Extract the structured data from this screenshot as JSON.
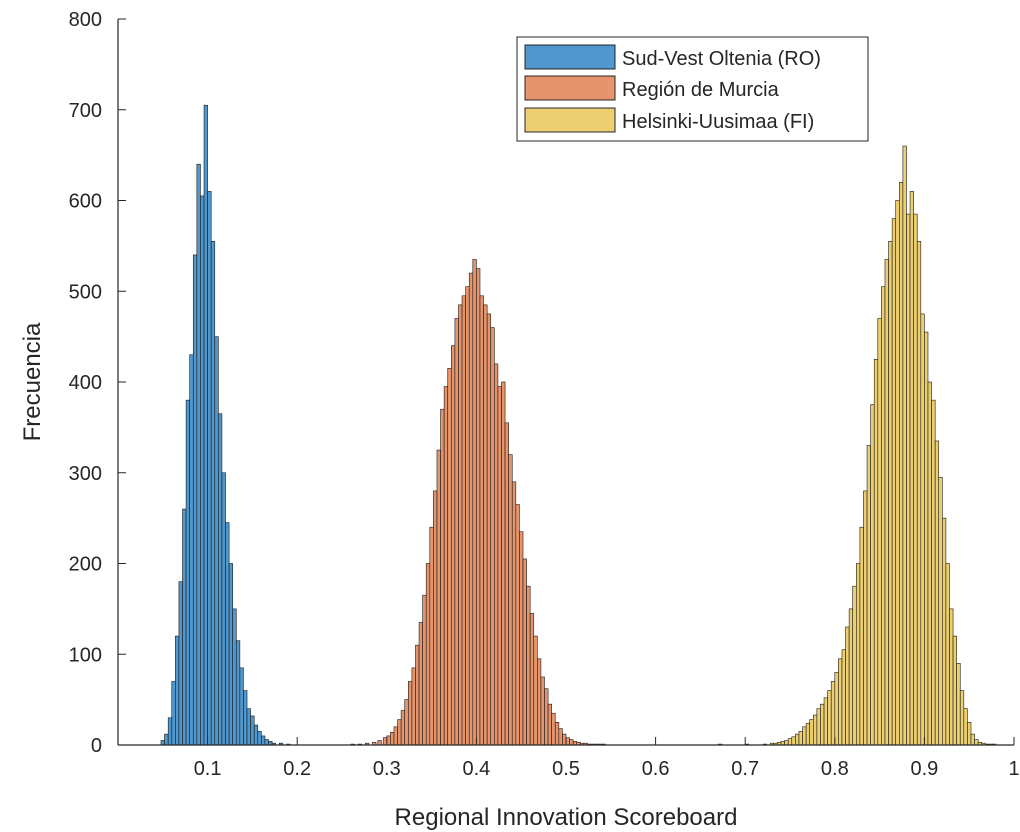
{
  "chart_data": {
    "type": "bar",
    "xlabel": "Regional Innovation Scoreboard",
    "ylabel": "Frecuencia",
    "xlim": [
      0,
      1
    ],
    "ylim": [
      0,
      800
    ],
    "xticks": [
      0.1,
      0.2,
      0.3,
      0.4,
      0.5,
      0.6,
      0.7,
      0.8,
      0.9,
      1
    ],
    "xtick_labels": [
      "0.1",
      "0.2",
      "0.3",
      "0.4",
      "0.5",
      "0.6",
      "0.7",
      "0.8",
      "0.9",
      "1"
    ],
    "yticks": [
      0,
      100,
      200,
      300,
      400,
      500,
      600,
      700,
      800
    ],
    "ytick_labels": [
      "0",
      "100",
      "200",
      "300",
      "400",
      "500",
      "600",
      "700",
      "800"
    ],
    "bin_width": 0.004,
    "grid": false,
    "legend_position": "top-right",
    "series": [
      {
        "name": "Sud-Vest Oltenia (RO)",
        "color": "#4f97cd",
        "x": [
          0.048,
          0.052,
          0.056,
          0.06,
          0.064,
          0.068,
          0.072,
          0.076,
          0.08,
          0.084,
          0.088,
          0.092,
          0.096,
          0.1,
          0.104,
          0.108,
          0.112,
          0.116,
          0.12,
          0.124,
          0.128,
          0.132,
          0.136,
          0.14,
          0.144,
          0.148,
          0.152,
          0.156,
          0.16,
          0.164,
          0.168,
          0.172,
          0.18,
          0.188
        ],
        "values": [
          5,
          12,
          30,
          70,
          120,
          180,
          260,
          380,
          430,
          540,
          640,
          605,
          705,
          610,
          555,
          450,
          365,
          300,
          245,
          200,
          150,
          115,
          85,
          60,
          40,
          32,
          22,
          15,
          10,
          6,
          4,
          2,
          2,
          1
        ]
      },
      {
        "name": "Región de Murcia",
        "color": "#e6946c",
        "x": [
          0.26,
          0.268,
          0.276,
          0.284,
          0.29,
          0.296,
          0.3,
          0.304,
          0.308,
          0.312,
          0.316,
          0.32,
          0.324,
          0.328,
          0.332,
          0.336,
          0.34,
          0.344,
          0.348,
          0.352,
          0.356,
          0.36,
          0.364,
          0.368,
          0.372,
          0.376,
          0.38,
          0.384,
          0.388,
          0.392,
          0.396,
          0.4,
          0.404,
          0.408,
          0.412,
          0.416,
          0.42,
          0.424,
          0.428,
          0.432,
          0.436,
          0.44,
          0.444,
          0.448,
          0.452,
          0.456,
          0.46,
          0.464,
          0.468,
          0.472,
          0.476,
          0.48,
          0.484,
          0.488,
          0.492,
          0.496,
          0.5,
          0.504,
          0.508,
          0.512,
          0.516,
          0.52,
          0.524,
          0.528,
          0.532,
          0.536,
          0.54
        ],
        "values": [
          1,
          1,
          2,
          3,
          5,
          8,
          10,
          14,
          20,
          28,
          38,
          50,
          70,
          85,
          110,
          135,
          165,
          200,
          240,
          280,
          325,
          370,
          395,
          415,
          440,
          470,
          485,
          495,
          505,
          520,
          535,
          525,
          495,
          485,
          475,
          460,
          420,
          395,
          400,
          355,
          320,
          290,
          265,
          235,
          205,
          175,
          145,
          120,
          95,
          75,
          62,
          45,
          35,
          25,
          18,
          12,
          8,
          6,
          4,
          3,
          2,
          2,
          1,
          1,
          1,
          1,
          1
        ]
      },
      {
        "name": "Helsinki-Uusimaa (FI)",
        "color": "#eccf70",
        "x": [
          0.67,
          0.7,
          0.72,
          0.728,
          0.732,
          0.736,
          0.74,
          0.744,
          0.748,
          0.752,
          0.756,
          0.76,
          0.764,
          0.768,
          0.772,
          0.776,
          0.78,
          0.784,
          0.788,
          0.792,
          0.796,
          0.8,
          0.804,
          0.808,
          0.812,
          0.816,
          0.82,
          0.824,
          0.828,
          0.832,
          0.836,
          0.84,
          0.844,
          0.848,
          0.852,
          0.856,
          0.86,
          0.864,
          0.868,
          0.872,
          0.876,
          0.88,
          0.884,
          0.888,
          0.892,
          0.896,
          0.9,
          0.904,
          0.908,
          0.912,
          0.916,
          0.92,
          0.924,
          0.928,
          0.932,
          0.936,
          0.94,
          0.944,
          0.948,
          0.952,
          0.956,
          0.96,
          0.964,
          0.968,
          0.972,
          0.976
        ],
        "values": [
          1,
          1,
          1,
          2,
          2,
          3,
          4,
          5,
          7,
          9,
          12,
          15,
          20,
          24,
          28,
          33,
          40,
          45,
          52,
          60,
          70,
          80,
          95,
          105,
          130,
          150,
          175,
          200,
          240,
          280,
          330,
          375,
          425,
          470,
          505,
          535,
          555,
          580,
          600,
          620,
          660,
          585,
          610,
          585,
          555,
          475,
          455,
          400,
          380,
          335,
          295,
          250,
          200,
          150,
          120,
          90,
          60,
          40,
          25,
          12,
          6,
          3,
          2,
          1,
          1,
          1
        ]
      }
    ]
  }
}
